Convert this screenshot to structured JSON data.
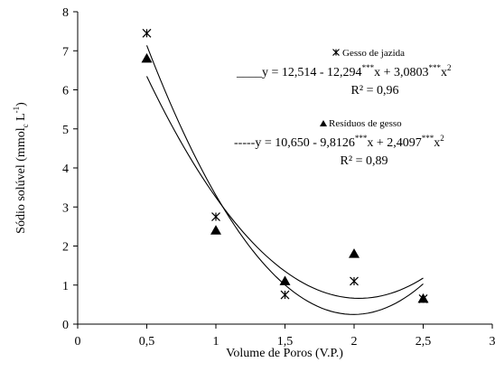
{
  "chart_data": {
    "type": "scatter",
    "xlabel": "Volume de Poros (V.P.)",
    "ylabel": {
      "main": "Sódio solúvel (mmol",
      "sub": "c",
      "unit": " L",
      "exp": "-1",
      "close": ")"
    },
    "xlim": [
      0,
      3
    ],
    "ylim": [
      0,
      8
    ],
    "x_ticks": [
      "0",
      "0,5",
      "1",
      "1,5",
      "2",
      "2,5",
      "3"
    ],
    "y_ticks": [
      "0",
      "1",
      "2",
      "3",
      "4",
      "5",
      "6",
      "7",
      "8"
    ],
    "grid": false,
    "legend_position": "top-right",
    "series": [
      {
        "name": "Gesso de jazida",
        "marker": "asterisk",
        "x": [
          0.5,
          1.0,
          1.5,
          2.0,
          2.5
        ],
        "y": [
          7.45,
          2.75,
          0.75,
          1.1,
          0.65
        ],
        "fit": {
          "a": 12.514,
          "b": -12.294,
          "c": 3.0803
        },
        "equation": {
          "prefix": "____",
          "p1": "y = 12,514 - 12,294",
          "s1": "***",
          "p2": "x  + 3,0803",
          "s2": "***",
          "p3": "x",
          "s3": "2"
        },
        "r2": "R² = 0,96"
      },
      {
        "name": "Resíduos de gesso",
        "marker": "triangle",
        "x": [
          0.5,
          1.0,
          1.5,
          2.0,
          2.5
        ],
        "y": [
          6.8,
          2.4,
          1.1,
          1.8,
          0.65
        ],
        "fit": {
          "a": 10.65,
          "b": -9.8126,
          "c": 2.4097
        },
        "equation": {
          "prefix": "-----",
          "p1": "y = 10,650 - 9,8126",
          "s1": "***",
          "p2": "x + 2,4097",
          "s2": "***",
          "p3": "x",
          "s3": "2"
        },
        "r2": "R² = 0,89"
      }
    ]
  }
}
